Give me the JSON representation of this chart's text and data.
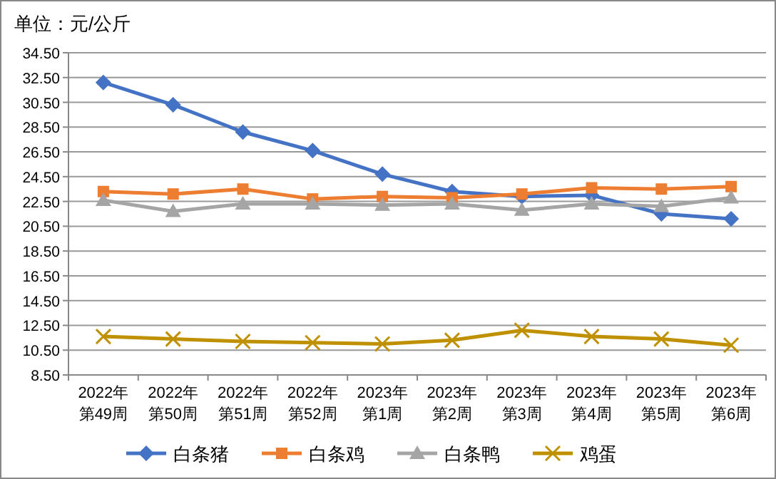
{
  "chart_data": {
    "type": "line",
    "title": "单位：元/公斤",
    "categories": [
      "2022年第49周",
      "2022年第50周",
      "2022年第51周",
      "2022年第52周",
      "2023年第1周",
      "2023年第2周",
      "2023年第3周",
      "2023年第4周",
      "2023年第5周",
      "2023年第6周"
    ],
    "series": [
      {
        "name": "白条猪",
        "color": "#4472c4",
        "marker": "diamond",
        "values": [
          32.1,
          30.3,
          28.1,
          26.6,
          24.7,
          23.3,
          22.9,
          23.0,
          21.5,
          21.1
        ]
      },
      {
        "name": "白条鸡",
        "color": "#ed7d31",
        "marker": "square",
        "values": [
          23.3,
          23.1,
          23.5,
          22.7,
          22.9,
          22.8,
          23.1,
          23.6,
          23.5,
          23.7
        ]
      },
      {
        "name": "白条鸭",
        "color": "#a5a5a5",
        "marker": "triangle",
        "values": [
          22.6,
          21.7,
          22.3,
          22.3,
          22.2,
          22.3,
          21.8,
          22.3,
          22.1,
          22.8
        ]
      },
      {
        "name": "鸡蛋",
        "color": "#bf9000",
        "marker": "cross",
        "values": [
          11.6,
          11.4,
          11.2,
          11.1,
          11.0,
          11.3,
          12.1,
          11.6,
          11.4,
          10.9
        ]
      }
    ],
    "ylim": [
      8.5,
      34.5
    ],
    "yticks": [
      {
        "value": 8.5,
        "label": "8.50"
      },
      {
        "value": 10.5,
        "label": "10.50"
      },
      {
        "value": 12.5,
        "label": "12.50"
      },
      {
        "value": 14.5,
        "label": "14.50"
      },
      {
        "value": 16.5,
        "label": "16.50"
      },
      {
        "value": 18.5,
        "label": "18.50"
      },
      {
        "value": 20.5,
        "label": "20.50"
      },
      {
        "value": 22.5,
        "label": "22.50"
      },
      {
        "value": 24.5,
        "label": "24.50"
      },
      {
        "value": 26.5,
        "label": "26.50"
      },
      {
        "value": 28.5,
        "label": "28.50"
      },
      {
        "value": 30.5,
        "label": "30.50"
      },
      {
        "value": 32.5,
        "label": "32.50"
      },
      {
        "value": 34.5,
        "label": "34.50"
      }
    ],
    "grid": "y",
    "legend": "bottom",
    "line_style": "solid"
  }
}
